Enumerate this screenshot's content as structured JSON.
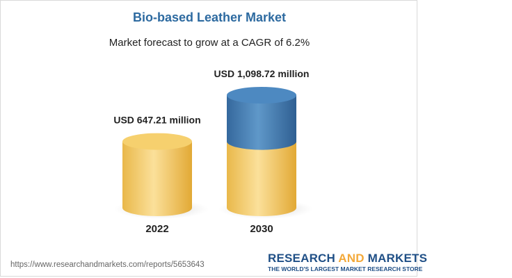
{
  "chart_data": {
    "type": "bar",
    "title": "Bio-based Leather Market",
    "subtitle": "Market forecast to grow at a CAGR of 6.2%",
    "categories": [
      "2022",
      "2030"
    ],
    "values": [
      647.21,
      1098.72
    ],
    "value_labels": [
      "USD 647.21 million",
      "USD 1,098.72 million"
    ],
    "unit": "USD million",
    "base_value": 647.21,
    "colors": {
      "base": "#f0c45a",
      "growth": "#3f7db4",
      "title": "#2d6aa0"
    }
  },
  "footer": {
    "source_url": "https://www.researchandmarkets.com/reports/5653643",
    "brand_part1": "RESEARCH ",
    "brand_and": "AND",
    "brand_part2": " MARKETS",
    "tagline": "THE WORLD'S LARGEST MARKET RESEARCH STORE"
  }
}
